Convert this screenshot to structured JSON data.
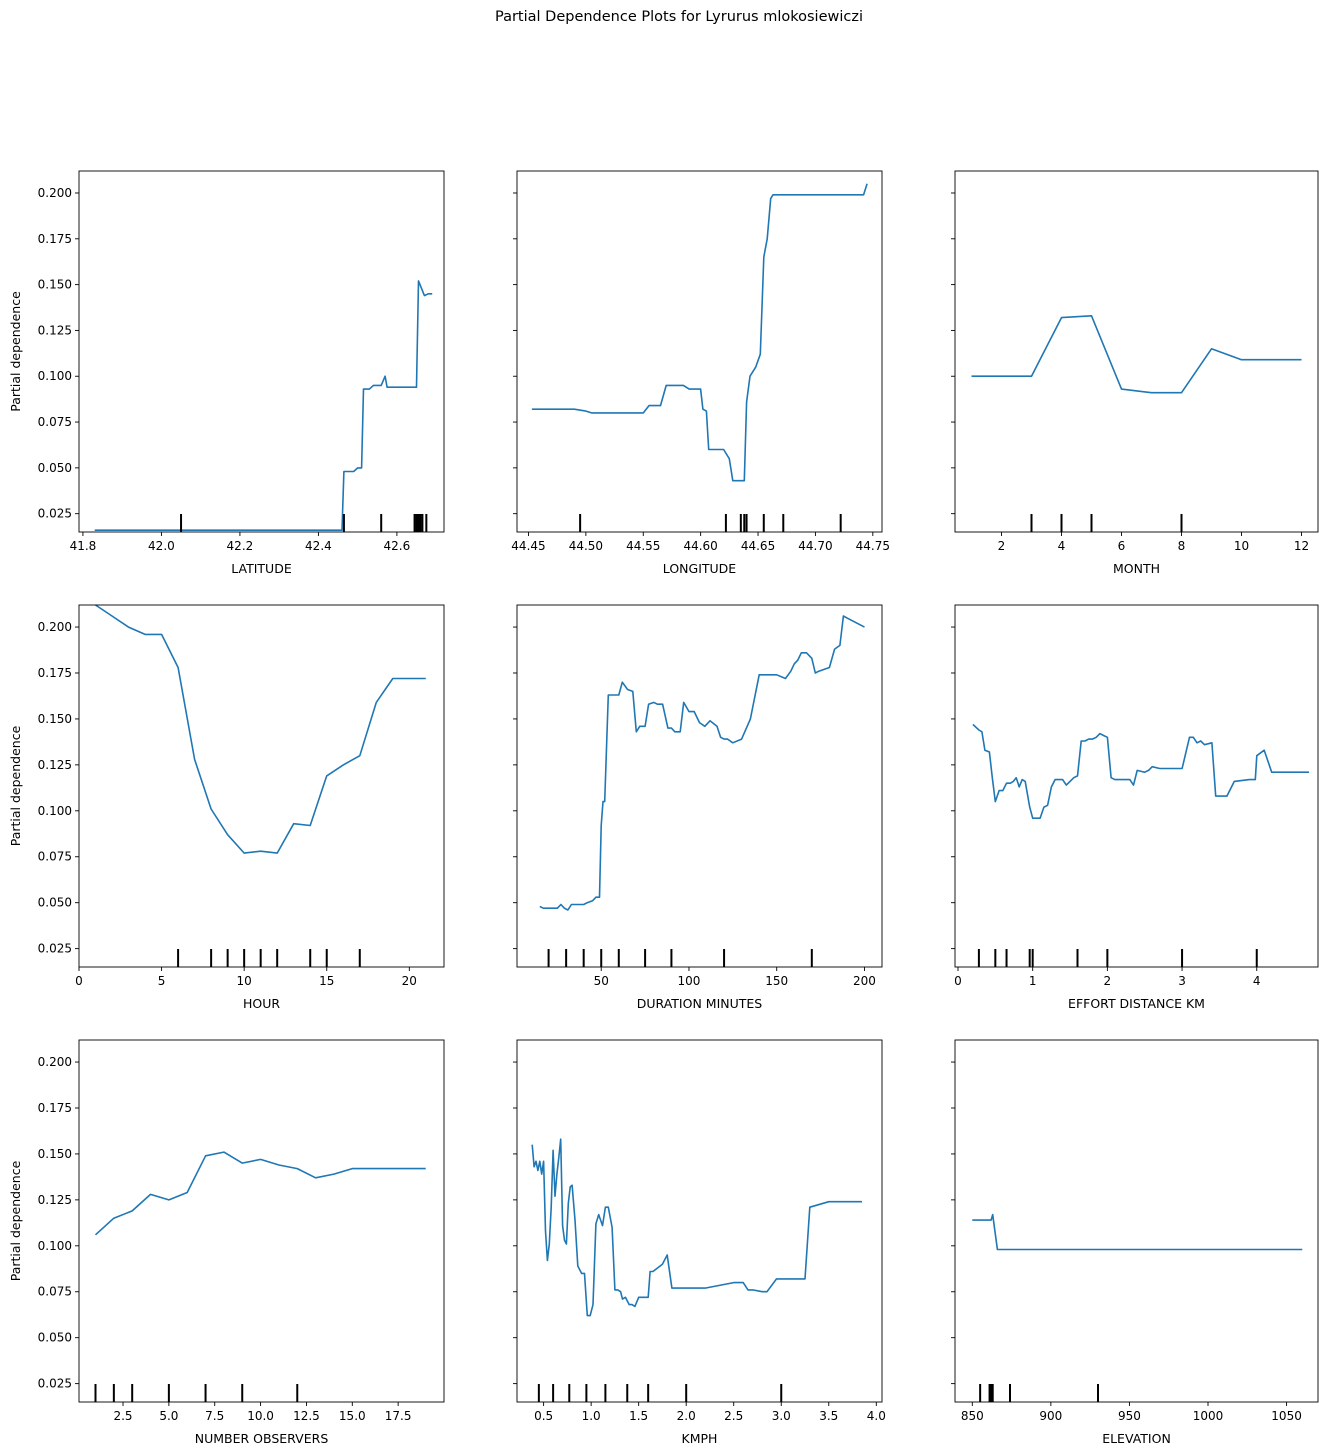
{
  "title": "Partial Dependence Plots for Lyrurus mlokosiewiczi",
  "line_color": "#1f77b4",
  "chart_data": [
    {
      "type": "line",
      "xlabel": "LATITUDE",
      "ylabel": "Partial dependence",
      "xlim": [
        41.79,
        42.72
      ],
      "ylim": [
        0.015,
        0.212
      ],
      "xticks": [
        41.8,
        42.0,
        42.2,
        42.4,
        42.6
      ],
      "xtick_labels": [
        "41.8",
        "42.0",
        "42.2",
        "42.4",
        "42.6"
      ],
      "yticks": [
        0.025,
        0.05,
        0.075,
        0.1,
        0.125,
        0.15,
        0.175,
        0.2
      ],
      "ytick_labels": [
        "0.025",
        "0.050",
        "0.075",
        "0.100",
        "0.125",
        "0.150",
        "0.175",
        "0.200"
      ],
      "x": [
        41.83,
        42.46,
        42.465,
        42.49,
        42.5,
        42.51,
        42.515,
        42.53,
        42.54,
        42.56,
        42.57,
        42.575,
        42.58,
        42.65,
        42.655,
        42.67,
        42.68,
        42.69
      ],
      "y": [
        0.016,
        0.016,
        0.048,
        0.048,
        0.05,
        0.05,
        0.093,
        0.093,
        0.095,
        0.095,
        0.1,
        0.094,
        0.094,
        0.094,
        0.152,
        0.144,
        0.145,
        0.145
      ],
      "deciles": [
        42.05,
        42.465,
        42.56,
        42.645,
        42.65,
        42.655,
        42.66,
        42.665,
        42.675
      ]
    },
    {
      "type": "line",
      "xlabel": "LONGITUDE",
      "ylabel": "",
      "xlim": [
        44.44,
        44.758
      ],
      "ylim": [
        0.015,
        0.212
      ],
      "xticks": [
        44.45,
        44.5,
        44.55,
        44.6,
        44.65,
        44.7,
        44.75
      ],
      "xtick_labels": [
        "44.45",
        "44.50",
        "44.55",
        "44.60",
        "44.65",
        "44.70",
        "44.75"
      ],
      "yticks": [
        0.025,
        0.05,
        0.075,
        0.1,
        0.125,
        0.15,
        0.175,
        0.2
      ],
      "ytick_labels": [],
      "x": [
        44.453,
        44.49,
        44.5,
        44.505,
        44.55,
        44.555,
        44.565,
        44.57,
        44.585,
        44.59,
        44.6,
        44.602,
        44.605,
        44.607,
        44.62,
        44.625,
        44.628,
        44.635,
        44.638,
        44.64,
        44.643,
        44.648,
        44.652,
        44.655,
        44.658,
        44.661,
        44.663,
        44.665,
        44.68,
        44.742,
        44.745
      ],
      "y": [
        0.082,
        0.082,
        0.081,
        0.08,
        0.08,
        0.084,
        0.084,
        0.095,
        0.095,
        0.093,
        0.093,
        0.082,
        0.081,
        0.06,
        0.06,
        0.055,
        0.043,
        0.043,
        0.043,
        0.086,
        0.1,
        0.105,
        0.112,
        0.165,
        0.175,
        0.197,
        0.199,
        0.199,
        0.199,
        0.199,
        0.205
      ],
      "deciles": [
        44.495,
        44.622,
        44.635,
        44.638,
        44.64,
        44.655,
        44.672,
        44.722
      ]
    },
    {
      "type": "line",
      "xlabel": "MONTH",
      "ylabel": "",
      "xlim": [
        0.45,
        12.55
      ],
      "ylim": [
        0.015,
        0.212
      ],
      "xticks": [
        2,
        4,
        6,
        8,
        10,
        12
      ],
      "xtick_labels": [
        "2",
        "4",
        "6",
        "8",
        "10",
        "12"
      ],
      "yticks": [
        0.025,
        0.05,
        0.075,
        0.1,
        0.125,
        0.15,
        0.175,
        0.2
      ],
      "ytick_labels": [],
      "x": [
        1,
        2,
        3,
        4,
        5,
        6,
        7,
        8,
        9,
        10,
        11,
        12
      ],
      "y": [
        0.1,
        0.1,
        0.1,
        0.132,
        0.133,
        0.093,
        0.091,
        0.091,
        0.115,
        0.109,
        0.109,
        0.109
      ],
      "deciles": [
        3,
        4,
        5,
        8
      ]
    },
    {
      "type": "line",
      "xlabel": "HOUR",
      "ylabel": "Partial dependence",
      "xlim": [
        0,
        22.1
      ],
      "ylim": [
        0.015,
        0.212
      ],
      "xticks": [
        0,
        5,
        10,
        15,
        20
      ],
      "xtick_labels": [
        "0",
        "5",
        "10",
        "15",
        "20"
      ],
      "yticks": [
        0.025,
        0.05,
        0.075,
        0.1,
        0.125,
        0.15,
        0.175,
        0.2
      ],
      "ytick_labels": [
        "0.025",
        "0.050",
        "0.075",
        "0.100",
        "0.125",
        "0.150",
        "0.175",
        "0.200"
      ],
      "x": [
        1,
        2,
        3,
        4,
        5,
        6,
        7,
        8,
        9,
        10,
        11,
        12,
        13,
        14,
        15,
        16,
        17,
        18,
        19,
        20,
        21
      ],
      "y": [
        0.212,
        0.206,
        0.2,
        0.196,
        0.196,
        0.178,
        0.128,
        0.101,
        0.087,
        0.077,
        0.078,
        0.077,
        0.093,
        0.092,
        0.119,
        0.125,
        0.13,
        0.159,
        0.172,
        0.172,
        0.172
      ],
      "deciles": [
        6,
        8,
        9,
        10,
        11,
        12,
        14,
        15,
        17
      ]
    },
    {
      "type": "line",
      "xlabel": "DURATION MINUTES",
      "ylabel": "",
      "xlim": [
        2,
        210
      ],
      "ylim": [
        0.015,
        0.212
      ],
      "xticks": [
        50,
        100,
        150,
        200
      ],
      "xtick_labels": [
        "50",
        "100",
        "150",
        "200"
      ],
      "yticks": [
        0.025,
        0.05,
        0.075,
        0.1,
        0.125,
        0.15,
        0.175,
        0.2
      ],
      "ytick_labels": [],
      "x": [
        15,
        17,
        25,
        27,
        29,
        31,
        33,
        40,
        42,
        45,
        47,
        49,
        50,
        51,
        52,
        54,
        56,
        60,
        62,
        65,
        68,
        70,
        72,
        75,
        77,
        80,
        82,
        85,
        88,
        90,
        92,
        95,
        97,
        100,
        103,
        106,
        109,
        112,
        116,
        118,
        120,
        122,
        125,
        130,
        135,
        140,
        143,
        145,
        148,
        150,
        155,
        158,
        160,
        162,
        164,
        167,
        170,
        172,
        174,
        180,
        183,
        186,
        188,
        190,
        200
      ],
      "y": [
        0.048,
        0.047,
        0.047,
        0.049,
        0.047,
        0.046,
        0.049,
        0.049,
        0.05,
        0.051,
        0.053,
        0.053,
        0.092,
        0.105,
        0.105,
        0.163,
        0.163,
        0.163,
        0.17,
        0.166,
        0.165,
        0.143,
        0.146,
        0.146,
        0.158,
        0.159,
        0.158,
        0.158,
        0.145,
        0.145,
        0.143,
        0.143,
        0.159,
        0.154,
        0.154,
        0.148,
        0.146,
        0.149,
        0.146,
        0.14,
        0.139,
        0.139,
        0.137,
        0.139,
        0.15,
        0.174,
        0.174,
        0.174,
        0.174,
        0.174,
        0.172,
        0.176,
        0.18,
        0.182,
        0.186,
        0.186,
        0.183,
        0.175,
        0.176,
        0.178,
        0.188,
        0.19,
        0.206,
        0.205,
        0.2
      ],
      "deciles": [
        20,
        30,
        40,
        50,
        60,
        75,
        90,
        120,
        170
      ]
    },
    {
      "type": "line",
      "xlabel": "EFFORT DISTANCE KM",
      "ylabel": "",
      "xlim": [
        -0.04,
        4.82
      ],
      "ylim": [
        0.015,
        0.212
      ],
      "xticks": [
        0,
        1,
        2,
        3,
        4
      ],
      "xtick_labels": [
        "0",
        "1",
        "2",
        "3",
        "4"
      ],
      "yticks": [
        0.025,
        0.05,
        0.075,
        0.1,
        0.125,
        0.15,
        0.175,
        0.2
      ],
      "ytick_labels": [],
      "x": [
        0.2,
        0.28,
        0.32,
        0.36,
        0.42,
        0.46,
        0.5,
        0.55,
        0.6,
        0.65,
        0.7,
        0.74,
        0.78,
        0.82,
        0.86,
        0.9,
        0.96,
        1.0,
        1.05,
        1.1,
        1.15,
        1.2,
        1.25,
        1.3,
        1.35,
        1.4,
        1.45,
        1.5,
        1.55,
        1.6,
        1.65,
        1.7,
        1.75,
        1.8,
        1.85,
        1.9,
        1.95,
        2.0,
        2.05,
        2.1,
        2.3,
        2.35,
        2.4,
        2.5,
        2.55,
        2.6,
        2.7,
        2.8,
        2.9,
        3.0,
        3.1,
        3.15,
        3.2,
        3.25,
        3.3,
        3.4,
        3.45,
        3.5,
        3.6,
        3.7,
        3.9,
        3.98,
        4.0,
        4.1,
        4.2,
        4.7
      ],
      "y": [
        0.147,
        0.144,
        0.143,
        0.133,
        0.132,
        0.118,
        0.105,
        0.111,
        0.111,
        0.115,
        0.115,
        0.116,
        0.118,
        0.113,
        0.117,
        0.116,
        0.102,
        0.096,
        0.096,
        0.096,
        0.102,
        0.103,
        0.113,
        0.117,
        0.117,
        0.117,
        0.114,
        0.116,
        0.118,
        0.119,
        0.138,
        0.138,
        0.139,
        0.139,
        0.14,
        0.142,
        0.141,
        0.14,
        0.118,
        0.117,
        0.117,
        0.114,
        0.122,
        0.121,
        0.122,
        0.124,
        0.123,
        0.123,
        0.123,
        0.123,
        0.14,
        0.14,
        0.137,
        0.138,
        0.136,
        0.137,
        0.108,
        0.108,
        0.108,
        0.116,
        0.117,
        0.117,
        0.13,
        0.133,
        0.121,
        0.121
      ],
      "deciles": [
        0.28,
        0.5,
        0.65,
        0.96,
        1.0,
        1.6,
        2.0,
        3.0,
        4.0
      ]
    },
    {
      "type": "line",
      "xlabel": "NUMBER OBSERVERS",
      "ylabel": "Partial dependence",
      "xlim": [
        0.1,
        20.0
      ],
      "ylim": [
        0.015,
        0.212
      ],
      "xticks": [
        2.5,
        5.0,
        7.5,
        10.0,
        12.5,
        15.0,
        17.5
      ],
      "xtick_labels": [
        "2.5",
        "5.0",
        "7.5",
        "10.0",
        "12.5",
        "15.0",
        "17.5"
      ],
      "yticks": [
        0.025,
        0.05,
        0.075,
        0.1,
        0.125,
        0.15,
        0.175,
        0.2
      ],
      "ytick_labels": [
        "0.025",
        "0.050",
        "0.075",
        "0.100",
        "0.125",
        "0.150",
        "0.175",
        "0.200"
      ],
      "x": [
        1,
        2,
        3,
        4,
        5,
        6,
        7,
        8,
        9,
        10,
        11,
        12,
        13,
        14,
        15,
        16,
        17,
        18,
        19
      ],
      "y": [
        0.106,
        0.115,
        0.119,
        0.128,
        0.125,
        0.129,
        0.149,
        0.151,
        0.145,
        0.147,
        0.144,
        0.142,
        0.137,
        0.139,
        0.142,
        0.142,
        0.142,
        0.142,
        0.142
      ],
      "deciles": [
        1,
        2,
        3,
        5,
        7,
        9,
        12
      ]
    },
    {
      "type": "line",
      "xlabel": "KMPH",
      "ylabel": "",
      "xlim": [
        0.22,
        4.06
      ],
      "ylim": [
        0.015,
        0.212
      ],
      "xticks": [
        0.5,
        1.0,
        1.5,
        2.0,
        2.5,
        3.0,
        3.5,
        4.0
      ],
      "xtick_labels": [
        "0.5",
        "1.0",
        "1.5",
        "2.0",
        "2.5",
        "3.0",
        "3.5",
        "4.0"
      ],
      "yticks": [
        0.025,
        0.05,
        0.075,
        0.1,
        0.125,
        0.15,
        0.175,
        0.2
      ],
      "ytick_labels": [],
      "x": [
        0.38,
        0.4,
        0.42,
        0.44,
        0.46,
        0.48,
        0.5,
        0.52,
        0.54,
        0.56,
        0.58,
        0.6,
        0.62,
        0.64,
        0.66,
        0.68,
        0.7,
        0.72,
        0.74,
        0.76,
        0.78,
        0.8,
        0.83,
        0.86,
        0.9,
        0.93,
        0.96,
        0.99,
        1.02,
        1.05,
        1.08,
        1.12,
        1.15,
        1.18,
        1.22,
        1.25,
        1.28,
        1.31,
        1.33,
        1.36,
        1.4,
        1.43,
        1.46,
        1.5,
        1.55,
        1.6,
        1.62,
        1.65,
        1.7,
        1.75,
        1.8,
        1.85,
        1.95,
        2.0,
        2.05,
        2.1,
        2.15,
        2.2,
        2.5,
        2.6,
        2.65,
        2.7,
        2.8,
        2.85,
        2.95,
        3.25,
        3.3,
        3.5,
        3.85
      ],
      "y": [
        0.155,
        0.143,
        0.146,
        0.141,
        0.146,
        0.139,
        0.146,
        0.108,
        0.092,
        0.101,
        0.121,
        0.152,
        0.127,
        0.139,
        0.148,
        0.158,
        0.111,
        0.103,
        0.101,
        0.123,
        0.132,
        0.133,
        0.114,
        0.089,
        0.085,
        0.085,
        0.062,
        0.062,
        0.068,
        0.112,
        0.117,
        0.111,
        0.121,
        0.121,
        0.11,
        0.076,
        0.076,
        0.075,
        0.071,
        0.072,
        0.068,
        0.068,
        0.067,
        0.072,
        0.072,
        0.072,
        0.086,
        0.086,
        0.088,
        0.09,
        0.095,
        0.077,
        0.077,
        0.077,
        0.077,
        0.077,
        0.077,
        0.077,
        0.08,
        0.08,
        0.076,
        0.076,
        0.075,
        0.075,
        0.082,
        0.082,
        0.121,
        0.124,
        0.124
      ],
      "deciles": [
        0.45,
        0.6,
        0.77,
        0.95,
        1.15,
        1.38,
        1.6,
        2.0,
        3.0
      ]
    },
    {
      "type": "line",
      "xlabel": "ELEVATION",
      "ylabel": "",
      "xlim": [
        839,
        1070
      ],
      "ylim": [
        0.015,
        0.212
      ],
      "xticks": [
        850,
        900,
        950,
        1000,
        1050
      ],
      "xtick_labels": [
        "850",
        "900",
        "950",
        "1000",
        "1050"
      ],
      "yticks": [
        0.025,
        0.05,
        0.075,
        0.1,
        0.125,
        0.15,
        0.175,
        0.2
      ],
      "ytick_labels": [],
      "x": [
        850,
        862,
        863,
        866,
        1060
      ],
      "y": [
        0.114,
        0.114,
        0.117,
        0.098,
        0.098
      ],
      "deciles": [
        855,
        861,
        862,
        863,
        874,
        930
      ]
    }
  ]
}
